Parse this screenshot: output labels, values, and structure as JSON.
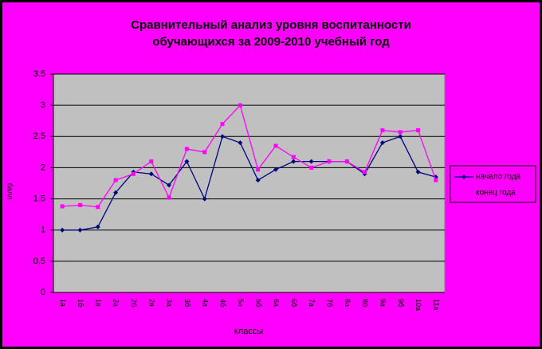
{
  "chart_data": {
    "type": "line",
    "title": [
      "Сравнительный анализ уровня воспитанности",
      "обучающихся за 2009-2010 учебный год"
    ],
    "x_label": "классы",
    "y_label": "балл",
    "categories": [
      "1а",
      "1б",
      "1в",
      "2а",
      "2б",
      "2в",
      "3а",
      "3б",
      "4а",
      "4б",
      "5а",
      "5б",
      "6а",
      "6б",
      "7а",
      "7б",
      "8а",
      "8б",
      "9а",
      "9б",
      "10а",
      "11а"
    ],
    "series": [
      {
        "name": "начало года",
        "color": "#000080",
        "marker": "diamond",
        "values": [
          1.0,
          1.0,
          1.05,
          1.6,
          1.93,
          1.9,
          1.72,
          2.1,
          1.5,
          2.5,
          2.4,
          1.8,
          1.97,
          2.1,
          2.1,
          2.1,
          2.1,
          1.9,
          2.4,
          2.5,
          1.93,
          1.85
        ]
      },
      {
        "name": "конец года",
        "color": "#ff00ff",
        "marker": "square",
        "values": [
          1.38,
          1.4,
          1.37,
          1.8,
          1.9,
          2.1,
          1.52,
          2.3,
          2.25,
          2.7,
          3.0,
          1.97,
          2.35,
          2.17,
          2.0,
          2.1,
          2.1,
          1.93,
          2.6,
          2.57,
          2.6,
          1.8
        ]
      }
    ],
    "ylim": [
      0,
      3.5
    ],
    "yticks": [
      0,
      0.5,
      1,
      1.5,
      2,
      2.5,
      3,
      3.5
    ],
    "grid": true,
    "background": "#ff00ff",
    "plot_background": "#c0c0c0",
    "legend": "right"
  }
}
